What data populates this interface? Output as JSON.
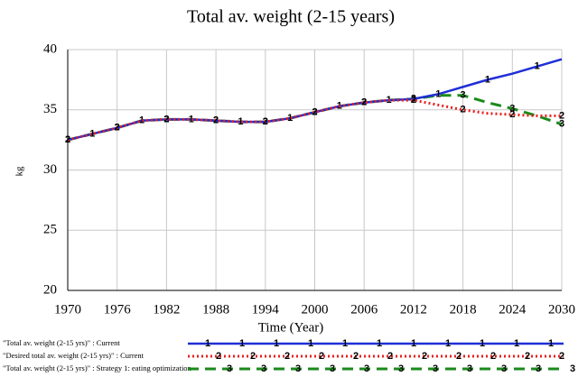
{
  "chart_data": {
    "type": "line",
    "title": "Total av. weight (2-15 years)",
    "x_label": "Time (Year)",
    "y_label": "kg",
    "x": [
      1970,
      1973,
      1976,
      1979,
      1982,
      1985,
      1988,
      1991,
      1994,
      1997,
      2000,
      2003,
      2006,
      2009,
      2012,
      2015,
      2018,
      2021,
      2024,
      2027,
      2030
    ],
    "series": [
      {
        "name": "\"Total av. weight (2-15 yrs)\" : Strategy 1: eating optimization",
        "marker": "3",
        "color": "#1a8a1a",
        "dash": "12,7",
        "width": 3,
        "values": [
          32.5,
          33.0,
          33.5,
          34.1,
          34.2,
          34.2,
          34.1,
          34.0,
          34.0,
          34.3,
          34.8,
          35.3,
          35.6,
          35.8,
          35.9,
          36.2,
          36.2,
          35.6,
          35.1,
          34.5,
          33.8
        ]
      },
      {
        "name": "\"Total av. weight (2-15 yrs)\" : Current",
        "marker": "1",
        "color": "#1f2fd6",
        "dash": "",
        "width": 2.5,
        "values": [
          32.5,
          33.0,
          33.5,
          34.1,
          34.2,
          34.2,
          34.1,
          34.0,
          34.0,
          34.3,
          34.8,
          35.3,
          35.6,
          35.8,
          35.9,
          36.3,
          36.9,
          37.5,
          38.0,
          38.6,
          39.2
        ]
      },
      {
        "name": "\"Desired total av. weight (2-15 yrs)\" : Current",
        "marker": "2",
        "color": "#e8201e",
        "dash": "2,3",
        "width": 3,
        "values": [
          32.5,
          33.0,
          33.5,
          34.1,
          34.2,
          34.2,
          34.1,
          34.0,
          34.0,
          34.3,
          34.8,
          35.3,
          35.6,
          35.8,
          35.8,
          35.4,
          35.0,
          34.7,
          34.6,
          34.5,
          34.5
        ]
      }
    ],
    "legend_order": [
      1,
      2,
      0
    ],
    "xlim": [
      1970,
      2030
    ],
    "xticks": [
      1970,
      1976,
      1982,
      1988,
      1994,
      2000,
      2006,
      2012,
      2018,
      2024,
      2030
    ],
    "ylim": [
      20,
      40
    ],
    "yticks": [
      20,
      25,
      30,
      35,
      40
    ],
    "grid": true
  }
}
